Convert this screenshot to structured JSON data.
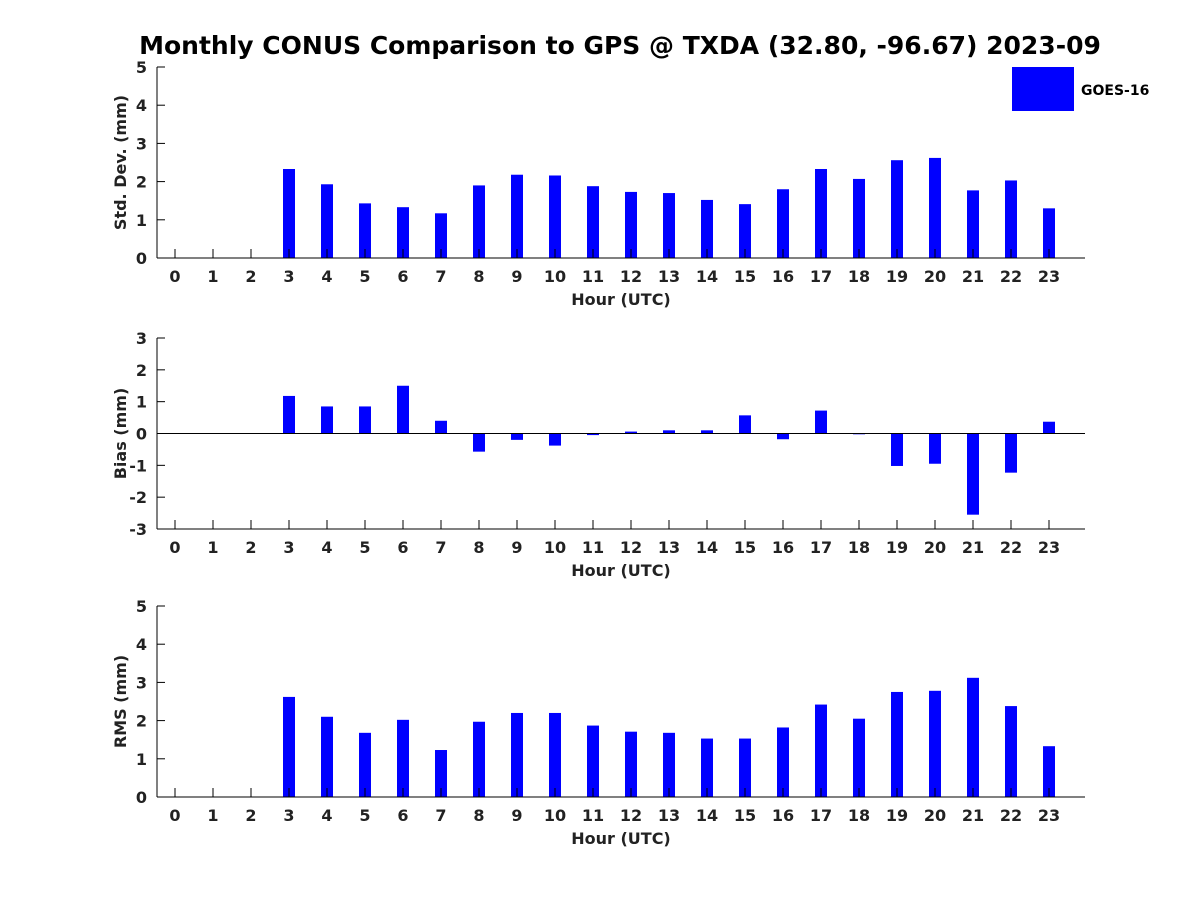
{
  "title": "Monthly CONUS Comparison to GPS @ TXDA (32.80, -96.67) 2023-09",
  "legend": {
    "label": "GOES-16",
    "color": "#0000ff",
    "placement": "top-right"
  },
  "chart_data": [
    {
      "type": "bar",
      "series_name": "GOES-16",
      "xlabel": "Hour (UTC)",
      "ylabel": "Std. Dev. (mm)",
      "ylim": [
        0,
        5
      ],
      "yticks": [
        0,
        1,
        2,
        3,
        4,
        5
      ],
      "categories": [
        "0",
        "1",
        "2",
        "3",
        "4",
        "5",
        "6",
        "7",
        "8",
        "9",
        "10",
        "11",
        "12",
        "13",
        "14",
        "15",
        "16",
        "17",
        "18",
        "19",
        "20",
        "21",
        "22",
        "23"
      ],
      "values": [
        null,
        null,
        null,
        2.33,
        1.93,
        1.43,
        1.33,
        1.17,
        1.9,
        2.18,
        2.16,
        1.88,
        1.73,
        1.7,
        1.52,
        1.41,
        1.8,
        2.33,
        2.07,
        2.56,
        2.62,
        1.77,
        2.03,
        1.3
      ]
    },
    {
      "type": "bar",
      "series_name": "GOES-16",
      "xlabel": "Hour (UTC)",
      "ylabel": "Bias (mm)",
      "ylim": [
        -3,
        3
      ],
      "yticks": [
        -3,
        -2,
        -1,
        0,
        1,
        2,
        3
      ],
      "categories": [
        "0",
        "1",
        "2",
        "3",
        "4",
        "5",
        "6",
        "7",
        "8",
        "9",
        "10",
        "11",
        "12",
        "13",
        "14",
        "15",
        "16",
        "17",
        "18",
        "19",
        "20",
        "21",
        "22",
        "23"
      ],
      "values": [
        null,
        null,
        null,
        1.18,
        0.85,
        0.85,
        1.5,
        0.4,
        -0.57,
        -0.2,
        -0.38,
        -0.05,
        0.06,
        0.1,
        0.1,
        0.57,
        -0.18,
        0.72,
        0.0,
        -1.02,
        -0.95,
        -2.55,
        -1.23,
        0.37
      ]
    },
    {
      "type": "bar",
      "series_name": "GOES-16",
      "xlabel": "Hour (UTC)",
      "ylabel": "RMS (mm)",
      "ylim": [
        0,
        5
      ],
      "yticks": [
        0,
        1,
        2,
        3,
        4,
        5
      ],
      "categories": [
        "0",
        "1",
        "2",
        "3",
        "4",
        "5",
        "6",
        "7",
        "8",
        "9",
        "10",
        "11",
        "12",
        "13",
        "14",
        "15",
        "16",
        "17",
        "18",
        "19",
        "20",
        "21",
        "22",
        "23"
      ],
      "values": [
        null,
        null,
        null,
        2.62,
        2.1,
        1.68,
        2.02,
        1.23,
        1.97,
        2.2,
        2.2,
        1.87,
        1.71,
        1.68,
        1.53,
        1.53,
        1.82,
        2.42,
        2.05,
        2.75,
        2.78,
        3.12,
        2.38,
        1.33
      ]
    }
  ]
}
